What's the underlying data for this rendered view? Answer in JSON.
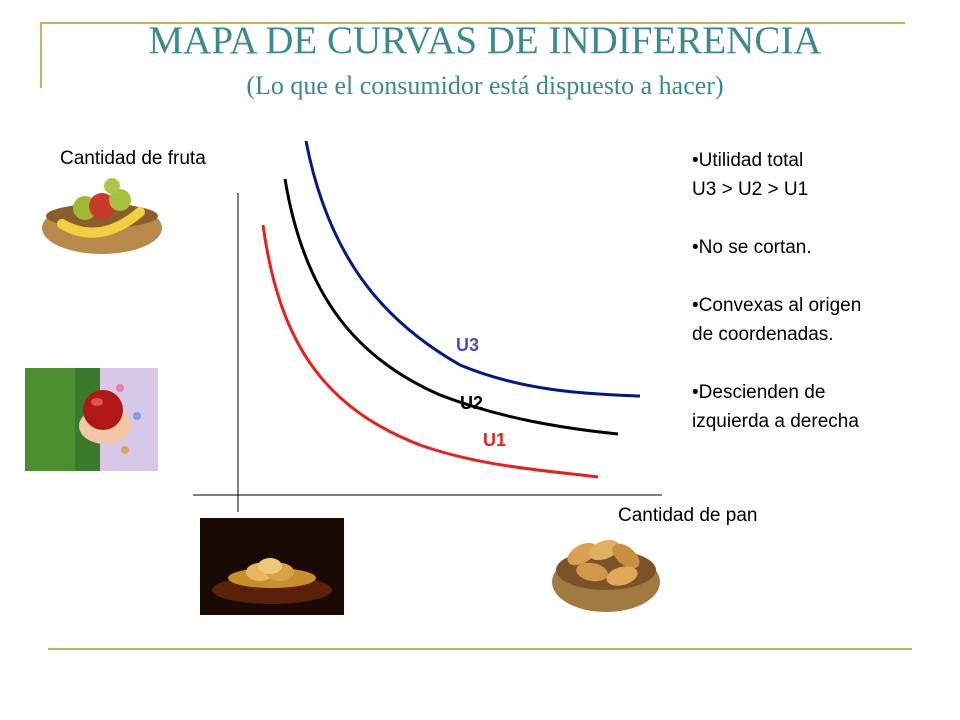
{
  "title": "MAPA DE CURVAS DE INDIFERENCIA",
  "subtitle": "(Lo que el consumidor está dispuesto a hacer)",
  "axes": {
    "y_label": "Cantidad de fruta",
    "x_label": "Cantidad de pan"
  },
  "curves": [
    {
      "label": "U3",
      "color": "#001a80",
      "label_color": "#4a4ac8"
    },
    {
      "label": "U2",
      "color": "#000000",
      "label_color": "#000000"
    },
    {
      "label": "U1",
      "color": "#e8201e",
      "label_color": "#e8201e"
    }
  ],
  "notes": [
    {
      "line1": "•Utilidad total",
      "line2": "U3 > U2 > U1"
    },
    {
      "line1": "•No se cortan.",
      "line2": ""
    },
    {
      "line1": "•Convexas al origen",
      "line2": "de coordenadas."
    },
    {
      "line1": "•Descienden de",
      "line2": "izquierda a derecha"
    }
  ],
  "images": [
    "fruit-basket-image",
    "hand-with-apple-image",
    "bread-basket-dark-image",
    "bread-basket-image"
  ],
  "colors": {
    "accent_rule": "#c8b054",
    "title": "#3a8a8e"
  }
}
